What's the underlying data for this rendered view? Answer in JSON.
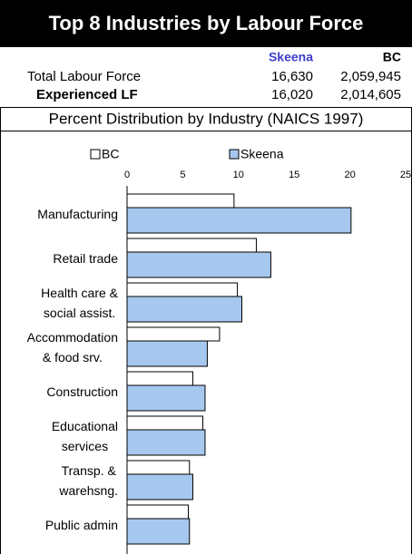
{
  "header": {
    "title": "Top 8 Industries by Labour Force"
  },
  "table": {
    "headers": [
      "Skeena",
      "BC"
    ],
    "rows": [
      {
        "label": "Total Labour Force",
        "values": [
          "16,630",
          "2,059,945"
        ]
      },
      {
        "label": "Experienced LF",
        "values": [
          "16,020",
          "2,014,605"
        ]
      }
    ]
  },
  "chart_data": {
    "type": "bar",
    "orientation": "horizontal",
    "title": "Percent Distribution by Industry (NAICS 1997)",
    "categories": [
      "Manufacturing",
      "Retail trade",
      "Health care &\nsocial assist.",
      "Accommodation\n& food srv.",
      "Construction",
      "Educational\nservices",
      "Transp. &\nwarehsng.",
      "Public admin"
    ],
    "series": [
      {
        "name": "BC",
        "color": "#ffffff",
        "values": [
          9.6,
          11.6,
          9.9,
          8.3,
          5.9,
          6.8,
          5.6,
          5.5
        ]
      },
      {
        "name": "Skeena",
        "color": "#a6c8ee",
        "values": [
          20.1,
          12.9,
          10.3,
          7.2,
          7.0,
          7.0,
          5.9,
          5.6
        ]
      }
    ],
    "xlim": [
      0,
      25
    ],
    "xticks": [
      0,
      5,
      10,
      15,
      20,
      25
    ],
    "legend": "top"
  }
}
